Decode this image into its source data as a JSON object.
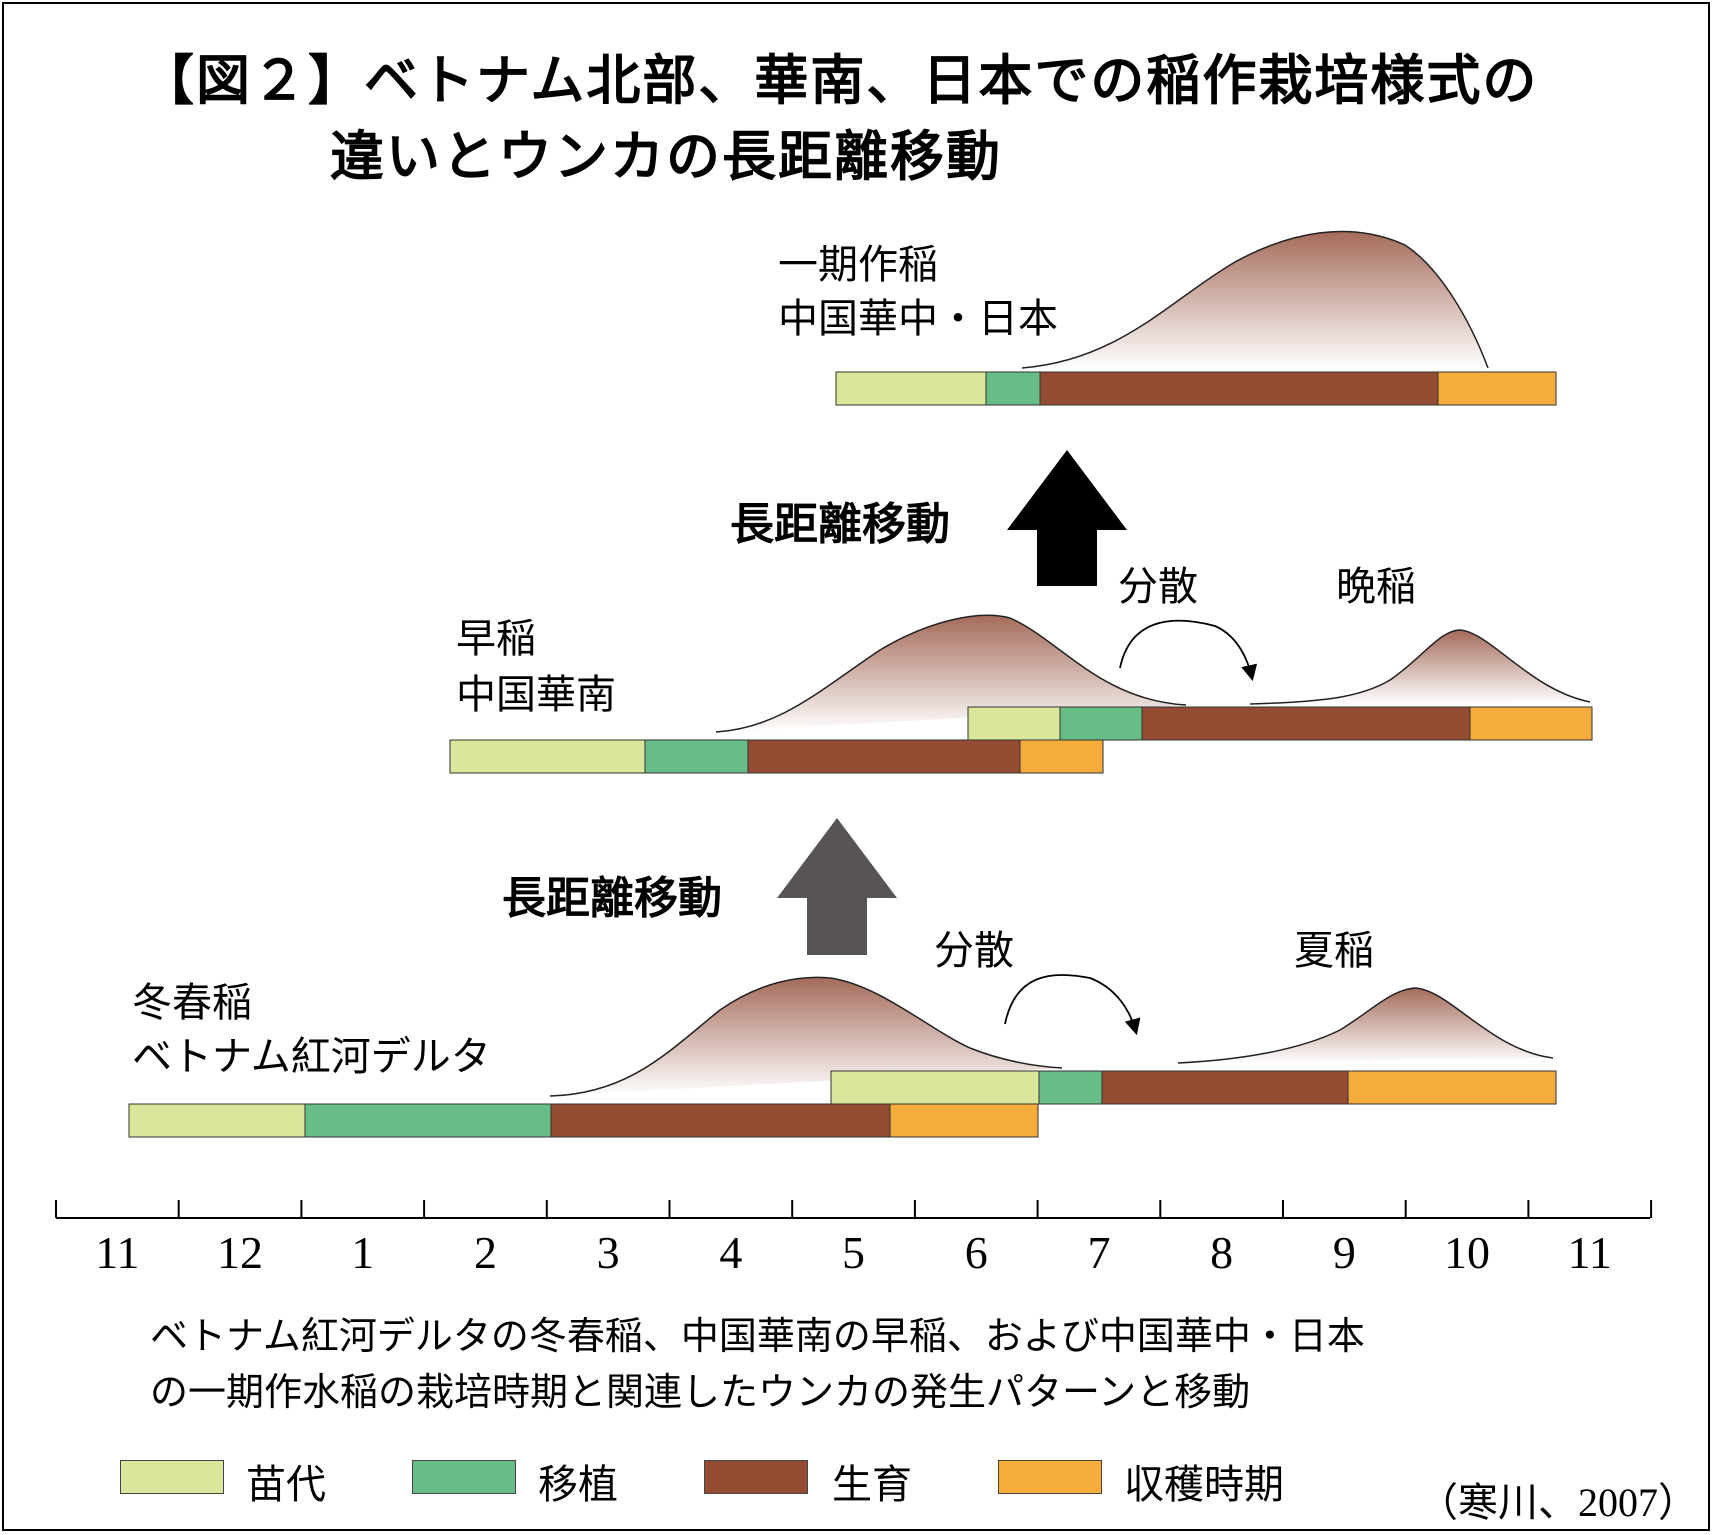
{
  "title": {
    "line1": "【図２】ベトナム北部、華南、日本での稲作栽培様式の",
    "line2": "違いとウンカの長距離移動"
  },
  "colors": {
    "nursery": "#d9e79a",
    "transplant": "#66bd85",
    "growth": "#944d33",
    "harvest": "#f5ac3b",
    "arrow_top": "#000000",
    "arrow_bottom": "#595454",
    "curve_dark": "#a46b5a",
    "curve_light": "#ffffff"
  },
  "axis": {
    "months": [
      "11",
      "12",
      "1",
      "2",
      "3",
      "4",
      "5",
      "6",
      "7",
      "8",
      "9",
      "10",
      "11"
    ]
  },
  "tiers": {
    "top": {
      "name": "一期作稲",
      "region": "中国華中・日本"
    },
    "middle": {
      "early_name": "早稲",
      "early_region": "中国華南",
      "disperse": "分散",
      "late_name": "晩稲",
      "migration": "長距離移動"
    },
    "bottom": {
      "early_name": "冬春稲",
      "early_region": "ベトナム紅河デルタ",
      "disperse": "分散",
      "late_name": "夏稲",
      "migration": "長距離移動"
    }
  },
  "caption": {
    "line1": "ベトナム紅河デルタの冬春稲、中国華南の早稲、および中国華中・日本",
    "line2": "の一期作水稲の栽培時期と関連したウンカの発生パターンと移動"
  },
  "legend": {
    "nursery": "苗代",
    "transplant": "移植",
    "growth": "生育",
    "harvest": "収穫時期"
  },
  "source": "（寒川、2007）"
}
